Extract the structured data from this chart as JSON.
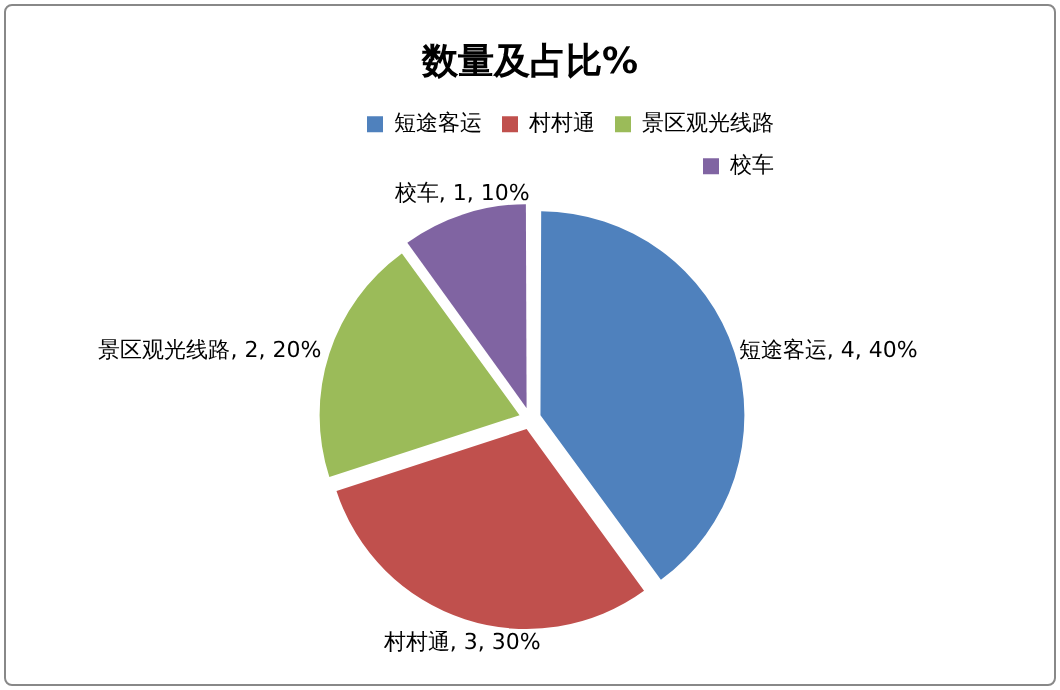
{
  "chart_data": {
    "type": "pie",
    "title": "数量及占比%",
    "categories": [
      "短途客运",
      "村村通",
      "景区观光线路",
      "校车"
    ],
    "values": [
      4,
      3,
      2,
      1
    ],
    "colors": [
      "#4f81bd",
      "#c0504d",
      "#9bbb59",
      "#8064a2"
    ],
    "value_labels": [
      "短途客运, 4, 40%",
      "村村通, 3, 30%",
      "景区观光线路, 2, 20%",
      "校车, 1, 10%"
    ],
    "legend": "top right"
  }
}
